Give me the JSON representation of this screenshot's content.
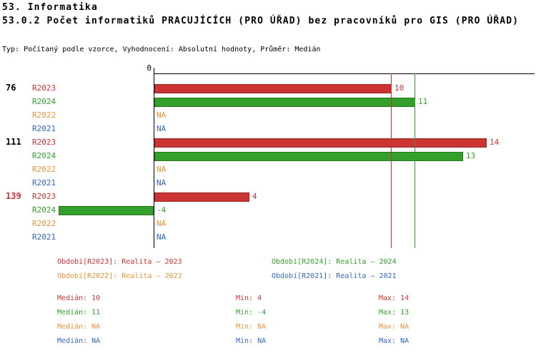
{
  "title": {
    "line1": "53. Informatika",
    "line2": "53.0.2 Počet informatiků PRACUJÍCÍCH (PRO ÚŘAD) bez pracovníků pro GIS (PRO ÚŘAD)",
    "meta": "Typ: Počítaný podle vzorce, Vyhodnocení: Absolutní hodnoty, Průměr: Medián"
  },
  "chart_data": {
    "type": "bar",
    "orientation": "horizontal",
    "axis_zero_label": "0",
    "x_range": [
      -4,
      14
    ],
    "grid": false,
    "series_order": [
      "R2023",
      "R2024",
      "R2022",
      "R2021"
    ],
    "series_colors": {
      "R2023": "#CC3333",
      "R2024": "#33A02C",
      "R2022": "#E8923A",
      "R2021": "#3366BB"
    },
    "groups": [
      {
        "label": "76",
        "label_color": "#000000",
        "values": [
          {
            "series": "R2023",
            "value": 10,
            "display": "10"
          },
          {
            "series": "R2024",
            "value": 11,
            "display": "11"
          },
          {
            "series": "R2022",
            "value": null,
            "display": "NA"
          },
          {
            "series": "R2021",
            "value": null,
            "display": "NA"
          }
        ]
      },
      {
        "label": "111",
        "label_color": "#000000",
        "values": [
          {
            "series": "R2023",
            "value": 14,
            "display": "14"
          },
          {
            "series": "R2024",
            "value": 13,
            "display": "13"
          },
          {
            "series": "R2022",
            "value": null,
            "display": "NA"
          },
          {
            "series": "R2021",
            "value": null,
            "display": "NA"
          }
        ]
      },
      {
        "label": "139",
        "label_color": "#CC3333",
        "values": [
          {
            "series": "R2023",
            "value": 4,
            "display": "4"
          },
          {
            "series": "R2024",
            "value": -4,
            "display": "-4"
          },
          {
            "series": "R2022",
            "value": null,
            "display": "NA"
          },
          {
            "series": "R2021",
            "value": null,
            "display": "NA"
          }
        ]
      }
    ],
    "reference_lines": [
      {
        "name": "median-line-r2023",
        "series": "R2023",
        "value": 10,
        "color": "#CC3333"
      },
      {
        "name": "median-line-r2024",
        "series": "R2024",
        "value": 11,
        "color": "#33A02C"
      }
    ],
    "stats": {
      "R2023": {
        "median": 10,
        "min": 4,
        "max": 14
      },
      "R2024": {
        "median": 11,
        "min": -4,
        "max": 13
      },
      "R2022": {
        "median": "NA",
        "min": "NA",
        "max": "NA"
      },
      "R2021": {
        "median": "NA",
        "min": "NA",
        "max": "NA"
      }
    }
  },
  "legend": {
    "items": [
      {
        "text": "Období[R2023]: Realita – 2023",
        "color": "#CC3333",
        "col": 0,
        "row": 0
      },
      {
        "text": "Období[R2024]: Realita – 2024",
        "color": "#33A02C",
        "col": 1,
        "row": 0
      },
      {
        "text": "Období[R2022]: Realita – 2022",
        "color": "#E8923A",
        "col": 0,
        "row": 1
      },
      {
        "text": "Období[R2021]: Realita – 2021",
        "color": "#3366BB",
        "col": 1,
        "row": 1
      }
    ]
  },
  "stats_panel": {
    "rows": [
      {
        "color": "#CC3333",
        "median": "Medián: 10",
        "min": "Min: 4",
        "max": "Max: 14"
      },
      {
        "color": "#33A02C",
        "median": "Medián: 11",
        "min": "Min: -4",
        "max": "Max: 13"
      },
      {
        "color": "#E8923A",
        "median": "Medián: NA",
        "min": "Min: NA",
        "max": "Max: NA"
      },
      {
        "color": "#3366BB",
        "median": "Medián: NA",
        "min": "Min: NA",
        "max": "Max: NA"
      }
    ]
  }
}
